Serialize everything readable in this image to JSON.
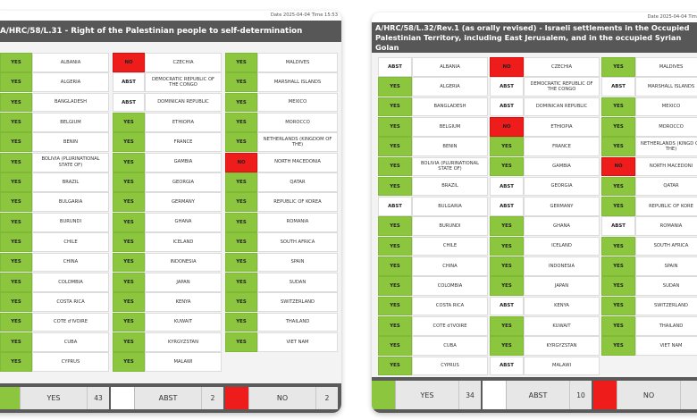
{
  "left": {
    "date_time": "Date 2025-04-04  Time 15:53",
    "title": "A/HRC/58/L.31 - Right of the Palestinian people to self-determination",
    "columns": [
      [
        {
          "vote": "YES",
          "country": "ALBANIA"
        },
        {
          "vote": "YES",
          "country": "ALGERIA"
        },
        {
          "vote": "YES",
          "country": "BANGLADESH"
        },
        {
          "vote": "YES",
          "country": "BELGIUM"
        },
        {
          "vote": "YES",
          "country": "BENIN"
        },
        {
          "vote": "YES",
          "country": "BOLIVIA (PLURINATIONAL STATE OF)"
        },
        {
          "vote": "YES",
          "country": "BRAZIL"
        },
        {
          "vote": "YES",
          "country": "BULGARIA"
        },
        {
          "vote": "YES",
          "country": "BURUNDI"
        },
        {
          "vote": "YES",
          "country": "CHILE"
        },
        {
          "vote": "YES",
          "country": "CHINA"
        },
        {
          "vote": "YES",
          "country": "COLOMBIA"
        },
        {
          "vote": "YES",
          "country": "COSTA RICA"
        },
        {
          "vote": "YES",
          "country": "COTE d'IVOIRE"
        },
        {
          "vote": "YES",
          "country": "CUBA"
        },
        {
          "vote": "YES",
          "country": "CYPRUS"
        }
      ],
      [
        {
          "vote": "NO",
          "country": "CZECHIA"
        },
        {
          "vote": "ABST",
          "country": "DEMOCRATIC REPUBLIC OF THE CONGO"
        },
        {
          "vote": "ABST",
          "country": "DOMINICAN REPUBLIC"
        },
        {
          "vote": "YES",
          "country": "ETHIOPIA"
        },
        {
          "vote": "YES",
          "country": "FRANCE"
        },
        {
          "vote": "YES",
          "country": "GAMBIA"
        },
        {
          "vote": "YES",
          "country": "GEORGIA"
        },
        {
          "vote": "YES",
          "country": "GERMANY"
        },
        {
          "vote": "YES",
          "country": "GHANA"
        },
        {
          "vote": "YES",
          "country": "ICELAND"
        },
        {
          "vote": "YES",
          "country": "INDONESIA"
        },
        {
          "vote": "YES",
          "country": "JAPAN"
        },
        {
          "vote": "YES",
          "country": "KENYA"
        },
        {
          "vote": "YES",
          "country": "KUWAIT"
        },
        {
          "vote": "YES",
          "country": "KYRGYZSTAN"
        },
        {
          "vote": "YES",
          "country": "MALAWI"
        }
      ],
      [
        {
          "vote": "YES",
          "country": "MALDIVES"
        },
        {
          "vote": "YES",
          "country": "MARSHALL ISLANDS"
        },
        {
          "vote": "YES",
          "country": "MEXICO"
        },
        {
          "vote": "YES",
          "country": "MOROCCO"
        },
        {
          "vote": "YES",
          "country": "NETHERLANDS (KINGDOM OF THE)"
        },
        {
          "vote": "NO",
          "country": "NORTH MACEDONIA"
        },
        {
          "vote": "YES",
          "country": "QATAR"
        },
        {
          "vote": "YES",
          "country": "REPUBLIC OF KOREA"
        },
        {
          "vote": "YES",
          "country": "ROMANIA"
        },
        {
          "vote": "YES",
          "country": "SOUTH AFRICA"
        },
        {
          "vote": "YES",
          "country": "SPAIN"
        },
        {
          "vote": "YES",
          "country": "SUDAN"
        },
        {
          "vote": "YES",
          "country": "SWITZERLAND"
        },
        {
          "vote": "YES",
          "country": "THAILAND"
        },
        {
          "vote": "YES",
          "country": "VIET NAM"
        }
      ]
    ],
    "totals": [
      {
        "type": "yes",
        "label": "YES",
        "count": "43"
      },
      {
        "type": "abst",
        "label": "ABST",
        "count": "2"
      },
      {
        "type": "no",
        "label": "NO",
        "count": "2"
      }
    ]
  },
  "right": {
    "date_time": "Date 2025-04-04  Time 1",
    "title": "A/HRC/58/L.32/Rev.1 (as orally revised) - Israeli settlements in the Occupied Palestinian Territory, including East Jerusalem, and in the occupied Syrian Golan",
    "columns": [
      [
        {
          "vote": "ABST",
          "country": "ALBANIA"
        },
        {
          "vote": "YES",
          "country": "ALGERIA"
        },
        {
          "vote": "YES",
          "country": "BANGLADESH"
        },
        {
          "vote": "YES",
          "country": "BELGIUM"
        },
        {
          "vote": "YES",
          "country": "BENIN"
        },
        {
          "vote": "YES",
          "country": "BOLIVIA (PLURINATIONAL STATE OF)"
        },
        {
          "vote": "YES",
          "country": "BRAZIL"
        },
        {
          "vote": "ABST",
          "country": "BULGARIA"
        },
        {
          "vote": "YES",
          "country": "BURUNDI"
        },
        {
          "vote": "YES",
          "country": "CHILE"
        },
        {
          "vote": "YES",
          "country": "CHINA"
        },
        {
          "vote": "YES",
          "country": "COLOMBIA"
        },
        {
          "vote": "YES",
          "country": "COSTA RICA"
        },
        {
          "vote": "YES",
          "country": "COTE d'IVOIRE"
        },
        {
          "vote": "YES",
          "country": "CUBA"
        },
        {
          "vote": "YES",
          "country": "CYPRUS"
        }
      ],
      [
        {
          "vote": "NO",
          "country": "CZECHIA"
        },
        {
          "vote": "ABST",
          "country": "DEMOCRATIC REPUBLIC OF THE CONGO"
        },
        {
          "vote": "ABST",
          "country": "DOMINICAN REPUBLIC"
        },
        {
          "vote": "NO",
          "country": "ETHIOPIA"
        },
        {
          "vote": "YES",
          "country": "FRANCE"
        },
        {
          "vote": "YES",
          "country": "GAMBIA"
        },
        {
          "vote": "ABST",
          "country": "GEORGIA"
        },
        {
          "vote": "ABST",
          "country": "GERMANY"
        },
        {
          "vote": "YES",
          "country": "GHANA"
        },
        {
          "vote": "YES",
          "country": "ICELAND"
        },
        {
          "vote": "YES",
          "country": "INDONESIA"
        },
        {
          "vote": "YES",
          "country": "JAPAN"
        },
        {
          "vote": "ABST",
          "country": "KENYA"
        },
        {
          "vote": "YES",
          "country": "KUWAIT"
        },
        {
          "vote": "YES",
          "country": "KYRGYZSTAN"
        },
        {
          "vote": "ABST",
          "country": "MALAWI"
        }
      ],
      [
        {
          "vote": "YES",
          "country": "MALDIVES"
        },
        {
          "vote": "ABST",
          "country": "MARSHALL ISLANDS"
        },
        {
          "vote": "YES",
          "country": "MEXICO"
        },
        {
          "vote": "YES",
          "country": "MOROCCO"
        },
        {
          "vote": "YES",
          "country": "NETHERLANDS (KINGD OF THE)"
        },
        {
          "vote": "NO",
          "country": "NORTH MACEDONI"
        },
        {
          "vote": "YES",
          "country": "QATAR"
        },
        {
          "vote": "YES",
          "country": "REPUBLIC OF KORE"
        },
        {
          "vote": "ABST",
          "country": "ROMANIA"
        },
        {
          "vote": "YES",
          "country": "SOUTH AFRICA"
        },
        {
          "vote": "YES",
          "country": "SPAIN"
        },
        {
          "vote": "YES",
          "country": "SUDAN"
        },
        {
          "vote": "YES",
          "country": "SWITZERLAND"
        },
        {
          "vote": "YES",
          "country": "THAILAND"
        },
        {
          "vote": "YES",
          "country": "VIET NAM"
        }
      ]
    ],
    "totals": [
      {
        "type": "yes",
        "label": "YES",
        "count": "34"
      },
      {
        "type": "abst",
        "label": "ABST",
        "count": "10"
      },
      {
        "type": "no",
        "label": "NO",
        "count": ""
      }
    ]
  },
  "colors": {
    "yes": "#8cc63f",
    "no": "#ef1c1c",
    "abst": "#ffffff",
    "title_bar": "#575757"
  }
}
